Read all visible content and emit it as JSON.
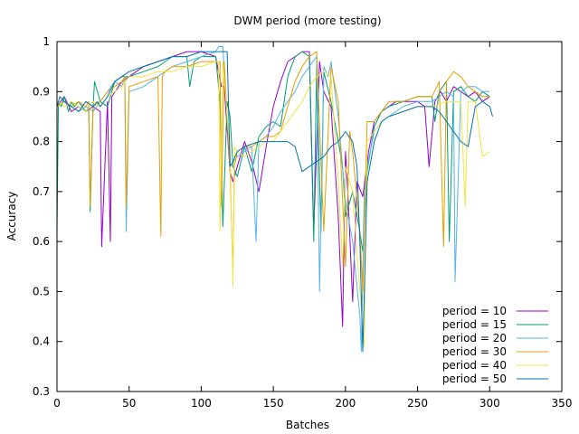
{
  "chart_data": {
    "type": "line",
    "title": "DWM period (more testing)",
    "xlabel": "Batches",
    "ylabel": "Accuracy",
    "xlim": [
      0,
      350
    ],
    "ylim": [
      0.3,
      1.0
    ],
    "xticks": [
      0,
      50,
      100,
      150,
      200,
      250,
      300,
      350
    ],
    "yticks": [
      0.3,
      0.4,
      0.5,
      0.6,
      0.7,
      0.8,
      0.9,
      1.0
    ],
    "ytick_labels": [
      "0.3",
      "0.4",
      "0.5",
      "0.6",
      "0.7",
      "0.8",
      "0.9",
      "1"
    ],
    "grid": false,
    "legend_position": "bottom-right",
    "series": [
      {
        "name": "period = 10",
        "color": "#9400d3",
        "x": [
          0,
          5,
          10,
          15,
          20,
          25,
          30,
          31,
          35,
          37,
          38,
          45,
          50,
          60,
          70,
          80,
          90,
          100,
          110,
          114,
          116,
          120,
          122,
          126,
          130,
          135,
          140,
          145,
          150,
          155,
          160,
          165,
          170,
          175,
          178,
          182,
          185,
          190,
          195,
          198,
          200,
          202,
          205,
          208,
          212,
          216,
          220,
          225,
          230,
          235,
          240,
          250,
          255,
          258,
          262,
          266,
          270,
          275,
          280,
          285,
          290,
          295,
          300
        ],
        "y": [
          0.87,
          0.89,
          0.86,
          0.87,
          0.86,
          0.87,
          0.86,
          0.59,
          0.88,
          0.6,
          0.89,
          0.92,
          0.93,
          0.95,
          0.96,
          0.97,
          0.98,
          0.98,
          0.97,
          0.91,
          0.91,
          0.74,
          0.72,
          0.76,
          0.8,
          0.76,
          0.7,
          0.79,
          0.87,
          0.92,
          0.96,
          0.97,
          0.98,
          0.98,
          0.62,
          0.96,
          0.9,
          0.87,
          0.65,
          0.43,
          0.78,
          0.68,
          0.48,
          0.72,
          0.69,
          0.78,
          0.84,
          0.86,
          0.87,
          0.88,
          0.88,
          0.88,
          0.87,
          0.75,
          0.88,
          0.9,
          0.88,
          0.91,
          0.9,
          0.89,
          0.9,
          0.88,
          0.89
        ]
      },
      {
        "name": "period = 15",
        "color": "#009e73",
        "x": [
          0,
          1,
          3,
          5,
          8,
          10,
          12,
          15,
          20,
          22,
          23,
          25,
          26,
          30,
          35,
          40,
          45,
          50,
          60,
          70,
          80,
          90,
          92,
          95,
          100,
          110,
          113,
          115,
          118,
          120,
          122,
          125,
          130,
          135,
          140,
          145,
          150,
          155,
          160,
          165,
          170,
          175,
          178,
          180,
          183,
          185,
          190,
          195,
          198,
          200,
          205,
          210,
          212,
          215,
          220,
          225,
          230,
          240,
          250,
          260,
          262,
          265,
          270,
          272,
          275,
          280,
          285,
          290,
          295,
          300
        ],
        "y": [
          0.62,
          0.88,
          0.87,
          0.89,
          0.86,
          0.88,
          0.87,
          0.88,
          0.86,
          0.87,
          0.66,
          0.87,
          0.92,
          0.88,
          0.87,
          0.92,
          0.93,
          0.93,
          0.94,
          0.95,
          0.97,
          0.97,
          0.91,
          0.96,
          0.97,
          0.97,
          0.88,
          0.63,
          0.88,
          0.85,
          0.75,
          0.73,
          0.79,
          0.74,
          0.81,
          0.83,
          0.84,
          0.83,
          0.93,
          0.97,
          0.98,
          0.97,
          0.6,
          0.95,
          0.62,
          0.94,
          0.88,
          0.8,
          0.75,
          0.65,
          0.7,
          0.62,
          0.58,
          0.74,
          0.83,
          0.86,
          0.87,
          0.88,
          0.89,
          0.89,
          0.84,
          0.9,
          0.92,
          0.6,
          0.9,
          0.91,
          0.89,
          0.88,
          0.9,
          0.89
        ]
      },
      {
        "name": "period = 20",
        "color": "#56b4e9",
        "x": [
          0,
          5,
          10,
          15,
          20,
          25,
          30,
          35,
          40,
          45,
          47,
          48,
          50,
          60,
          70,
          80,
          90,
          100,
          110,
          112,
          115,
          120,
          125,
          130,
          135,
          138,
          140,
          145,
          150,
          155,
          160,
          165,
          170,
          175,
          180,
          182,
          185,
          188,
          190,
          195,
          200,
          205,
          210,
          211,
          213,
          215,
          220,
          225,
          230,
          240,
          250,
          260,
          265,
          270,
          275,
          276,
          280,
          285,
          290,
          295,
          300
        ],
        "y": [
          0.87,
          0.88,
          0.87,
          0.86,
          0.87,
          0.86,
          0.88,
          0.9,
          0.92,
          0.91,
          0.93,
          0.62,
          0.9,
          0.91,
          0.93,
          0.95,
          0.96,
          0.97,
          0.98,
          0.99,
          0.99,
          0.75,
          0.77,
          0.78,
          0.79,
          0.6,
          0.8,
          0.81,
          0.83,
          0.86,
          0.88,
          0.9,
          0.93,
          0.95,
          0.97,
          0.5,
          0.95,
          0.93,
          0.96,
          0.85,
          0.68,
          0.6,
          0.45,
          0.38,
          0.7,
          0.75,
          0.82,
          0.84,
          0.85,
          0.87,
          0.88,
          0.88,
          0.89,
          0.9,
          0.89,
          0.52,
          0.9,
          0.91,
          0.91,
          0.9,
          0.9
        ]
      },
      {
        "name": "period = 30",
        "color": "#e69f00",
        "x": [
          0,
          5,
          10,
          15,
          20,
          22,
          23,
          25,
          30,
          35,
          40,
          45,
          47,
          48,
          50,
          60,
          70,
          72,
          73,
          75,
          80,
          90,
          100,
          110,
          113,
          114,
          116,
          120,
          122,
          123,
          125,
          130,
          135,
          140,
          145,
          150,
          155,
          160,
          165,
          170,
          175,
          180,
          185,
          190,
          195,
          200,
          203,
          205,
          210,
          212,
          215,
          220,
          225,
          230,
          240,
          250,
          260,
          265,
          268,
          270,
          275,
          280,
          285,
          290,
          295,
          300
        ],
        "y": [
          0.87,
          0.88,
          0.87,
          0.88,
          0.87,
          0.88,
          0.67,
          0.87,
          0.88,
          0.9,
          0.91,
          0.92,
          0.93,
          0.67,
          0.91,
          0.92,
          0.93,
          0.61,
          0.93,
          0.94,
          0.95,
          0.95,
          0.96,
          0.96,
          0.96,
          0.67,
          0.96,
          0.74,
          0.54,
          0.75,
          0.78,
          0.79,
          0.79,
          0.8,
          0.81,
          0.81,
          0.82,
          0.87,
          0.92,
          0.95,
          0.97,
          0.98,
          0.62,
          0.95,
          0.88,
          0.55,
          0.82,
          0.78,
          0.62,
          0.5,
          0.84,
          0.84,
          0.86,
          0.88,
          0.88,
          0.89,
          0.89,
          0.92,
          0.59,
          0.92,
          0.94,
          0.93,
          0.91,
          0.9,
          0.89,
          0.89
        ]
      },
      {
        "name": "period = 40",
        "color": "#f0e442",
        "x": [
          0,
          5,
          10,
          15,
          20,
          25,
          30,
          35,
          40,
          45,
          50,
          60,
          70,
          80,
          90,
          100,
          110,
          112,
          113,
          115,
          120,
          122,
          123,
          125,
          130,
          135,
          140,
          145,
          150,
          155,
          160,
          165,
          170,
          175,
          180,
          185,
          190,
          195,
          198,
          200,
          205,
          210,
          213,
          215,
          220,
          225,
          230,
          240,
          250,
          260,
          270,
          280,
          283,
          285,
          290,
          295,
          300
        ],
        "y": [
          0.88,
          0.87,
          0.88,
          0.87,
          0.86,
          0.88,
          0.87,
          0.89,
          0.9,
          0.91,
          0.93,
          0.93,
          0.94,
          0.94,
          0.95,
          0.95,
          0.96,
          0.96,
          0.62,
          0.96,
          0.78,
          0.51,
          0.79,
          0.78,
          0.77,
          0.78,
          0.79,
          0.8,
          0.8,
          0.82,
          0.84,
          0.86,
          0.88,
          0.91,
          0.93,
          0.94,
          0.93,
          0.72,
          0.55,
          0.75,
          0.7,
          0.5,
          0.39,
          0.8,
          0.82,
          0.84,
          0.85,
          0.86,
          0.87,
          0.87,
          0.88,
          0.88,
          0.67,
          0.88,
          0.88,
          0.77,
          0.78
        ]
      },
      {
        "name": "period = 50",
        "color": "#0072b2",
        "x": [
          0,
          2,
          5,
          10,
          15,
          20,
          25,
          28,
          30,
          35,
          40,
          45,
          50,
          60,
          70,
          80,
          90,
          100,
          110,
          115,
          118,
          120,
          122,
          125,
          130,
          140,
          150,
          160,
          165,
          170,
          175,
          180,
          185,
          190,
          195,
          200,
          205,
          208,
          210,
          212,
          215,
          220,
          225,
          230,
          240,
          250,
          260,
          265,
          270,
          275,
          280,
          285,
          290,
          295,
          300,
          302
        ],
        "y": [
          0.87,
          0.89,
          0.88,
          0.87,
          0.86,
          0.88,
          0.87,
          0.88,
          0.87,
          0.89,
          0.92,
          0.93,
          0.94,
          0.95,
          0.96,
          0.97,
          0.97,
          0.98,
          0.98,
          0.98,
          0.98,
          0.75,
          0.76,
          0.78,
          0.79,
          0.8,
          0.8,
          0.8,
          0.79,
          0.74,
          0.75,
          0.76,
          0.77,
          0.79,
          0.8,
          0.82,
          0.8,
          0.75,
          0.6,
          0.38,
          0.72,
          0.8,
          0.84,
          0.85,
          0.86,
          0.87,
          0.87,
          0.86,
          0.84,
          0.82,
          0.8,
          0.79,
          0.87,
          0.88,
          0.87,
          0.85
        ]
      }
    ]
  }
}
